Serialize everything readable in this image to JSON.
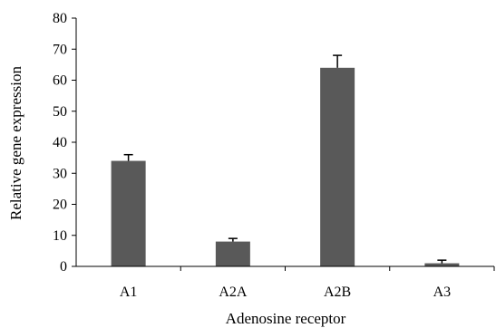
{
  "chart_data": {
    "type": "bar",
    "title": "",
    "xlabel": "Adenosine receptor",
    "ylabel": "Relative gene expression",
    "categories": [
      "A1",
      "A2A",
      "A2B",
      "A3"
    ],
    "series": [
      {
        "values": [
          34,
          8,
          64,
          1
        ],
        "errors": [
          2,
          1,
          4,
          1
        ]
      }
    ],
    "ylim": [
      0,
      80
    ],
    "yticks": [
      0,
      10,
      20,
      30,
      40,
      50,
      60,
      70,
      80
    ],
    "grid": false,
    "legend": "none",
    "bar_color": "#595959",
    "axis_color": "#000000"
  }
}
